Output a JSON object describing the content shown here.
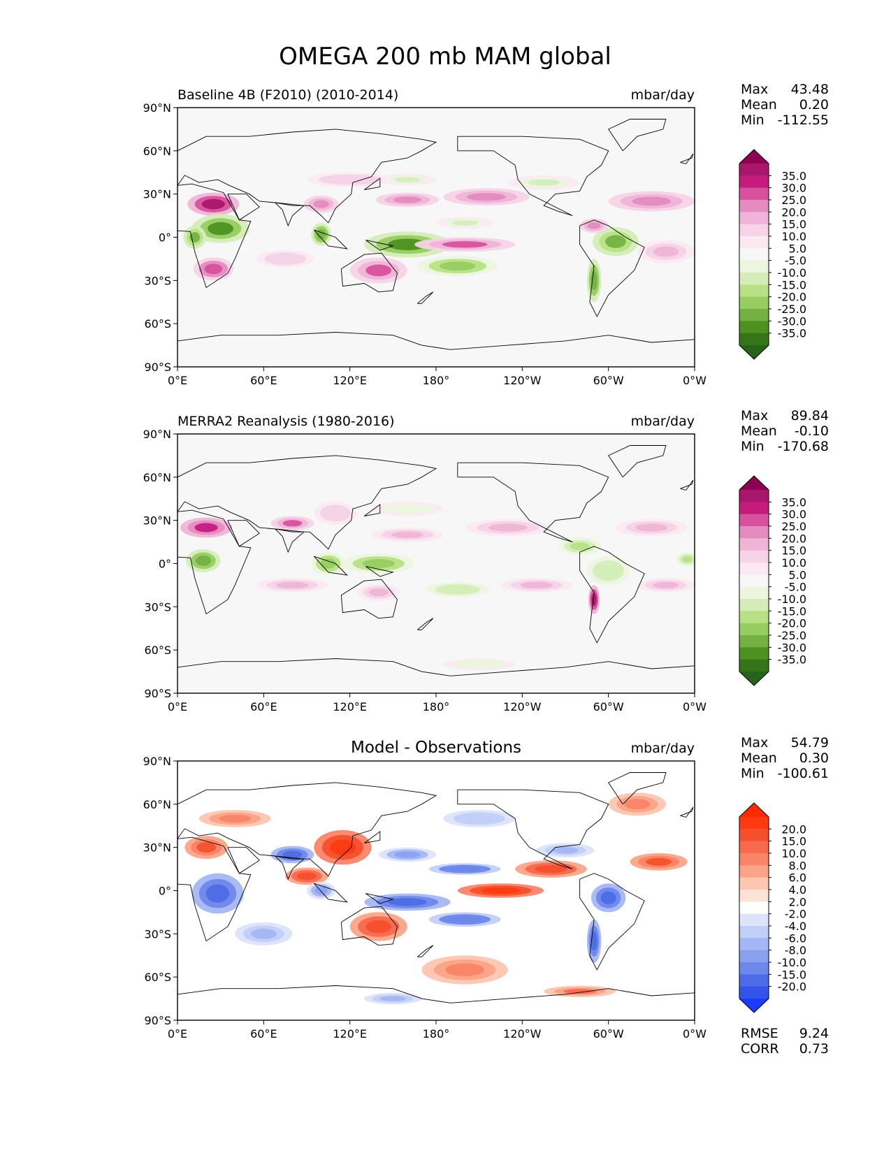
{
  "figure": {
    "title": "OMEGA 200 mb MAM global"
  },
  "chart_data": [
    {
      "type": "heatmap",
      "title_left": "Baseline 4B (F2010) (2010-2014)",
      "title_center": "",
      "units": "mbar/day",
      "xticks": [
        "0°E",
        "60°E",
        "120°E",
        "180°",
        "120°W",
        "60°W",
        "0°W"
      ],
      "yticks": [
        "90°N",
        "60°N",
        "30°N",
        "0°",
        "30°S",
        "60°S",
        "90°S"
      ],
      "xlim": [
        0,
        360
      ],
      "ylim": [
        -90,
        90
      ],
      "stats": [
        {
          "label": "Max",
          "value": "43.48"
        },
        {
          "label": "Mean",
          "value": "0.20"
        },
        {
          "label": "Min",
          "value": "-112.55"
        }
      ],
      "colorbar": {
        "labels": [
          "35.0",
          "30.0",
          "25.0",
          "20.0",
          "15.0",
          "10.0",
          "5.0",
          "-5.0",
          "-10.0",
          "-15.0",
          "-20.0",
          "-25.0",
          "-30.0",
          "-35.0"
        ],
        "colors": [
          "#8e0152",
          "#a9176d",
          "#c51b7d",
          "#d8519d",
          "#e48bc0",
          "#efb4d7",
          "#f6d3e7",
          "#fbe9f2",
          "#f7f7f7",
          "#ecf5dd",
          "#d4edb8",
          "#b8e186",
          "#97cc61",
          "#73b241",
          "#4d9221",
          "#357518",
          "#276419"
        ]
      },
      "regions": [
        {
          "lon": 25,
          "lat": 23,
          "rlon": 18,
          "rlat": 8,
          "v": 30
        },
        {
          "lon": 30,
          "lat": 6,
          "rlon": 20,
          "rlat": 10,
          "v": -33
        },
        {
          "lon": 12,
          "lat": 0,
          "rlon": 8,
          "rlat": 8,
          "v": -28
        },
        {
          "lon": 25,
          "lat": -22,
          "rlon": 14,
          "rlat": 8,
          "v": 22
        },
        {
          "lon": 100,
          "lat": 23,
          "rlon": 12,
          "rlat": 6,
          "v": 18
        },
        {
          "lon": 100,
          "lat": 2,
          "rlon": 7,
          "rlat": 8,
          "v": -30
        },
        {
          "lon": 160,
          "lat": -5,
          "rlon": 30,
          "rlat": 9,
          "v": -35
        },
        {
          "lon": 195,
          "lat": -20,
          "rlon": 28,
          "rlat": 7,
          "v": -25
        },
        {
          "lon": 140,
          "lat": -23,
          "rlon": 20,
          "rlat": 9,
          "v": 20
        },
        {
          "lon": 200,
          "lat": -5,
          "rlon": 35,
          "rlat": 5,
          "v": 20
        },
        {
          "lon": 215,
          "lat": 28,
          "rlon": 30,
          "rlat": 6,
          "v": 15
        },
        {
          "lon": 160,
          "lat": 26,
          "rlon": 22,
          "rlat": 5,
          "v": 15
        },
        {
          "lon": 305,
          "lat": -3,
          "rlon": 16,
          "rlat": 10,
          "v": -28
        },
        {
          "lon": 290,
          "lat": -30,
          "rlon": 5,
          "rlat": 15,
          "v": -30
        },
        {
          "lon": 330,
          "lat": 25,
          "rlon": 30,
          "rlat": 7,
          "v": 18
        },
        {
          "lon": 290,
          "lat": 8,
          "rlon": 10,
          "rlat": 5,
          "v": 15
        },
        {
          "lon": 120,
          "lat": 40,
          "rlon": 30,
          "rlat": 5,
          "v": 8
        },
        {
          "lon": 160,
          "lat": 40,
          "rlon": 20,
          "rlat": 4,
          "v": -12
        },
        {
          "lon": 200,
          "lat": 10,
          "rlon": 20,
          "rlat": 4,
          "v": -12
        },
        {
          "lon": 255,
          "lat": 38,
          "rlon": 25,
          "rlat": 5,
          "v": -12
        },
        {
          "lon": 340,
          "lat": -10,
          "rlon": 20,
          "rlat": 8,
          "v": 10
        },
        {
          "lon": 75,
          "lat": -15,
          "rlon": 20,
          "rlat": 6,
          "v": 8
        }
      ]
    },
    {
      "type": "heatmap",
      "title_left": "MERRA2 Reanalysis (1980-2016)",
      "title_center": "",
      "units": "mbar/day",
      "xticks": [
        "0°E",
        "60°E",
        "120°E",
        "180°",
        "120°W",
        "60°W",
        "0°W"
      ],
      "yticks": [
        "90°N",
        "60°N",
        "30°N",
        "0°",
        "30°S",
        "60°S",
        "90°S"
      ],
      "xlim": [
        0,
        360
      ],
      "ylim": [
        -90,
        90
      ],
      "stats": [
        {
          "label": "Max",
          "value": "89.84"
        },
        {
          "label": "Mean",
          "value": "-0.10"
        },
        {
          "label": "Min",
          "value": "-170.68"
        }
      ],
      "colorbar": {
        "labels": [
          "35.0",
          "30.0",
          "25.0",
          "20.0",
          "15.0",
          "10.0",
          "5.0",
          "-5.0",
          "-10.0",
          "-15.0",
          "-20.0",
          "-25.0",
          "-30.0",
          "-35.0"
        ],
        "colors": [
          "#8e0152",
          "#a9176d",
          "#c51b7d",
          "#d8519d",
          "#e48bc0",
          "#efb4d7",
          "#f6d3e7",
          "#fbe9f2",
          "#f7f7f7",
          "#ecf5dd",
          "#d4edb8",
          "#b8e186",
          "#97cc61",
          "#73b241",
          "#4d9221",
          "#357518",
          "#276419"
        ]
      },
      "regions": [
        {
          "lon": 20,
          "lat": 25,
          "rlon": 18,
          "rlat": 7,
          "v": 28
        },
        {
          "lon": 18,
          "lat": 2,
          "rlon": 12,
          "rlat": 8,
          "v": -30
        },
        {
          "lon": 80,
          "lat": 28,
          "rlon": 15,
          "rlat": 5,
          "v": 20
        },
        {
          "lon": 105,
          "lat": 0,
          "rlon": 12,
          "rlat": 8,
          "v": -25
        },
        {
          "lon": 140,
          "lat": 0,
          "rlon": 25,
          "rlat": 7,
          "v": -22
        },
        {
          "lon": 195,
          "lat": -18,
          "rlon": 22,
          "rlat": 5,
          "v": -15
        },
        {
          "lon": 80,
          "lat": -15,
          "rlon": 25,
          "rlat": 5,
          "v": 12
        },
        {
          "lon": 140,
          "lat": -20,
          "rlon": 15,
          "rlat": 6,
          "v": 10
        },
        {
          "lon": 250,
          "lat": -15,
          "rlon": 25,
          "rlat": 5,
          "v": 10
        },
        {
          "lon": 340,
          "lat": -15,
          "rlon": 20,
          "rlat": 5,
          "v": 12
        },
        {
          "lon": 300,
          "lat": -5,
          "rlon": 15,
          "rlat": 10,
          "v": -15
        },
        {
          "lon": 290,
          "lat": -25,
          "rlon": 4,
          "rlat": 10,
          "v": 30
        },
        {
          "lon": 280,
          "lat": 12,
          "rlon": 15,
          "rlat": 6,
          "v": -18
        },
        {
          "lon": 355,
          "lat": 3,
          "rlon": 8,
          "rlat": 5,
          "v": -20
        },
        {
          "lon": 160,
          "lat": 38,
          "rlon": 25,
          "rlat": 5,
          "v": -10
        },
        {
          "lon": 230,
          "lat": 25,
          "rlon": 30,
          "rlat": 6,
          "v": 10
        },
        {
          "lon": 330,
          "lat": 25,
          "rlon": 25,
          "rlat": 6,
          "v": 12
        },
        {
          "lon": 160,
          "lat": 20,
          "rlon": 25,
          "rlat": 5,
          "v": 10
        },
        {
          "lon": 210,
          "lat": -70,
          "rlon": 25,
          "rlat": 4,
          "v": -8
        },
        {
          "lon": 110,
          "lat": 35,
          "rlon": 15,
          "rlat": 8,
          "v": 8
        }
      ]
    },
    {
      "type": "heatmap",
      "title_left": "",
      "title_center": "Model - Observations",
      "units": "mbar/day",
      "xticks": [
        "0°E",
        "60°E",
        "120°E",
        "180°",
        "120°W",
        "60°W",
        "0°W"
      ],
      "yticks": [
        "90°N",
        "60°N",
        "30°N",
        "0°",
        "30°S",
        "60°S",
        "90°S"
      ],
      "xlim": [
        0,
        360
      ],
      "ylim": [
        -90,
        90
      ],
      "stats": [
        {
          "label": "Max",
          "value": "54.79"
        },
        {
          "label": "Mean",
          "value": "0.30"
        },
        {
          "label": "Min",
          "value": "-100.61"
        }
      ],
      "extra_stats": [
        {
          "label": "RMSE",
          "value": "9.24"
        },
        {
          "label": "CORR",
          "value": "0.73"
        }
      ],
      "colorbar": {
        "labels": [
          "20.0",
          "15.0",
          "10.0",
          "8.0",
          "6.0",
          "4.0",
          "2.0",
          "-2.0",
          "-4.0",
          "-6.0",
          "-8.0",
          "-10.0",
          "-15.0",
          "-20.0"
        ],
        "colors": [
          "#ff2a00",
          "#ff3a10",
          "#f5502d",
          "#f8694e",
          "#fa8468",
          "#fca487",
          "#fdc6b1",
          "#fde2d8",
          "#ffffff",
          "#dce4fb",
          "#c1cff8",
          "#a4b6f3",
          "#8aa1ef",
          "#6d88ea",
          "#4c6be6",
          "#3354ec",
          "#1a3cff"
        ]
      },
      "regions": [
        {
          "lon": 20,
          "lat": 30,
          "rlon": 15,
          "rlat": 8,
          "v": 10
        },
        {
          "lon": 28,
          "lat": -2,
          "rlon": 18,
          "rlat": 14,
          "v": -18
        },
        {
          "lon": 80,
          "lat": 25,
          "rlon": 15,
          "rlat": 6,
          "v": -20
        },
        {
          "lon": 115,
          "lat": 30,
          "rlon": 20,
          "rlat": 12,
          "v": 15
        },
        {
          "lon": 90,
          "lat": 10,
          "rlon": 15,
          "rlat": 6,
          "v": 12
        },
        {
          "lon": 160,
          "lat": -8,
          "rlon": 30,
          "rlat": 6,
          "v": -20
        },
        {
          "lon": 200,
          "lat": -20,
          "rlon": 25,
          "rlat": 5,
          "v": -15
        },
        {
          "lon": 140,
          "lat": -25,
          "rlon": 20,
          "rlat": 10,
          "v": 12
        },
        {
          "lon": 225,
          "lat": 0,
          "rlon": 30,
          "rlat": 5,
          "v": 15
        },
        {
          "lon": 200,
          "lat": 15,
          "rlon": 25,
          "rlat": 4,
          "v": -15
        },
        {
          "lon": 260,
          "lat": 15,
          "rlon": 25,
          "rlat": 6,
          "v": 12
        },
        {
          "lon": 300,
          "lat": -5,
          "rlon": 12,
          "rlat": 10,
          "v": -20
        },
        {
          "lon": 290,
          "lat": -35,
          "rlon": 5,
          "rlat": 15,
          "v": -20
        },
        {
          "lon": 335,
          "lat": 20,
          "rlon": 20,
          "rlat": 6,
          "v": 10
        },
        {
          "lon": 160,
          "lat": 25,
          "rlon": 20,
          "rlat": 5,
          "v": -10
        },
        {
          "lon": 270,
          "lat": 28,
          "rlon": 20,
          "rlat": 5,
          "v": -8
        },
        {
          "lon": 100,
          "lat": 0,
          "rlon": 10,
          "rlat": 6,
          "v": -10
        },
        {
          "lon": 60,
          "lat": -30,
          "rlon": 20,
          "rlat": 8,
          "v": -8
        },
        {
          "lon": 320,
          "lat": 60,
          "rlon": 20,
          "rlat": 8,
          "v": 6
        },
        {
          "lon": 200,
          "lat": -55,
          "rlon": 30,
          "rlat": 10,
          "v": 6
        },
        {
          "lon": 150,
          "lat": -75,
          "rlon": 20,
          "rlat": 4,
          "v": -8
        },
        {
          "lon": 210,
          "lat": 50,
          "rlon": 25,
          "rlat": 6,
          "v": -6
        },
        {
          "lon": 40,
          "lat": 50,
          "rlon": 25,
          "rlat": 6,
          "v": 6
        },
        {
          "lon": 280,
          "lat": -70,
          "rlon": 25,
          "rlat": 4,
          "v": 8
        }
      ]
    }
  ]
}
